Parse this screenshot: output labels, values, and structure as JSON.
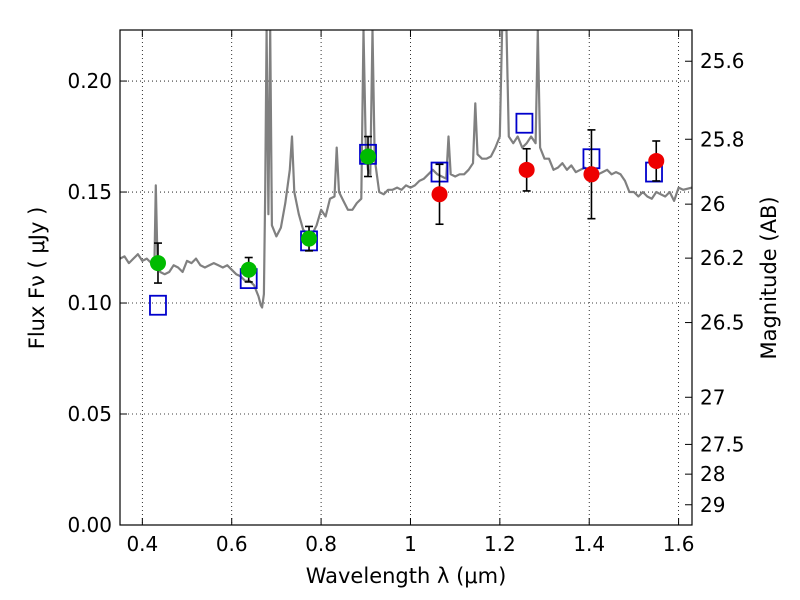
{
  "chart_data": {
    "type": "scatter",
    "xlabel": "Wavelength  λ (μm)",
    "ylabel": "Flux  Fν  ( μJy )",
    "y2label": "Magnitude (AB)",
    "xlim": [
      0.35,
      1.63
    ],
    "ylim": [
      0.0,
      0.223
    ],
    "grid": true,
    "x_ticks": [
      {
        "value": 0.4,
        "label": "0.4"
      },
      {
        "value": 0.6,
        "label": "0.6"
      },
      {
        "value": 0.8,
        "label": "0.8"
      },
      {
        "value": 1.0,
        "label": "1"
      },
      {
        "value": 1.2,
        "label": "1.2"
      },
      {
        "value": 1.4,
        "label": "1.4"
      },
      {
        "value": 1.6,
        "label": "1.6"
      }
    ],
    "y_ticks": [
      {
        "value": 0.0,
        "label": "0.00"
      },
      {
        "value": 0.05,
        "label": "0.05"
      },
      {
        "value": 0.1,
        "label": "0.10"
      },
      {
        "value": 0.15,
        "label": "0.15"
      },
      {
        "value": 0.2,
        "label": "0.20"
      }
    ],
    "magnitude_ticks": [
      {
        "value": 25.6,
        "label": "25.6"
      },
      {
        "value": 25.8,
        "label": "25.8"
      },
      {
        "value": 26.0,
        "label": "26"
      },
      {
        "value": 26.2,
        "label": "26.2"
      },
      {
        "value": 26.5,
        "label": "26.5"
      },
      {
        "value": 27.0,
        "label": "27"
      },
      {
        "value": 27.5,
        "label": "27.5"
      },
      {
        "value": 28.0,
        "label": "28"
      },
      {
        "value": 29.0,
        "label": "29"
      }
    ],
    "series": [
      {
        "kind": "spectrum",
        "color": "#808080",
        "points": [
          [
            0.35,
            0.12
          ],
          [
            0.36,
            0.121
          ],
          [
            0.37,
            0.118
          ],
          [
            0.38,
            0.12
          ],
          [
            0.39,
            0.122
          ],
          [
            0.4,
            0.119
          ],
          [
            0.41,
            0.12
          ],
          [
            0.42,
            0.118
          ],
          [
            0.427,
            0.117
          ],
          [
            0.43,
            0.153
          ],
          [
            0.434,
            0.119
          ],
          [
            0.44,
            0.114
          ],
          [
            0.45,
            0.113
          ],
          [
            0.46,
            0.114
          ],
          [
            0.47,
            0.117
          ],
          [
            0.48,
            0.116
          ],
          [
            0.49,
            0.114
          ],
          [
            0.5,
            0.119
          ],
          [
            0.51,
            0.118
          ],
          [
            0.52,
            0.12
          ],
          [
            0.53,
            0.117
          ],
          [
            0.54,
            0.116
          ],
          [
            0.55,
            0.117
          ],
          [
            0.56,
            0.118
          ],
          [
            0.57,
            0.117
          ],
          [
            0.58,
            0.116
          ],
          [
            0.59,
            0.117
          ],
          [
            0.6,
            0.115
          ],
          [
            0.61,
            0.113
          ],
          [
            0.62,
            0.112
          ],
          [
            0.63,
            0.11
          ],
          [
            0.64,
            0.11
          ],
          [
            0.65,
            0.108
          ],
          [
            0.66,
            0.103
          ],
          [
            0.665,
            0.099
          ],
          [
            0.668,
            0.098
          ],
          [
            0.672,
            0.104
          ],
          [
            0.675,
            0.15
          ],
          [
            0.678,
            0.223
          ],
          [
            0.682,
            0.14
          ],
          [
            0.686,
            0.223
          ],
          [
            0.69,
            0.135
          ],
          [
            0.7,
            0.13
          ],
          [
            0.71,
            0.134
          ],
          [
            0.72,
            0.145
          ],
          [
            0.73,
            0.16
          ],
          [
            0.735,
            0.175
          ],
          [
            0.74,
            0.15
          ],
          [
            0.75,
            0.14
          ],
          [
            0.76,
            0.133
          ],
          [
            0.77,
            0.131
          ],
          [
            0.78,
            0.131
          ],
          [
            0.79,
            0.135
          ],
          [
            0.8,
            0.142
          ],
          [
            0.81,
            0.139
          ],
          [
            0.82,
            0.147
          ],
          [
            0.83,
            0.148
          ],
          [
            0.835,
            0.17
          ],
          [
            0.84,
            0.15
          ],
          [
            0.85,
            0.146
          ],
          [
            0.86,
            0.142
          ],
          [
            0.87,
            0.142
          ],
          [
            0.88,
            0.145
          ],
          [
            0.89,
            0.147
          ],
          [
            0.895,
            0.223
          ],
          [
            0.9,
            0.17
          ],
          [
            0.905,
            0.16
          ],
          [
            0.91,
            0.158
          ],
          [
            0.915,
            0.223
          ],
          [
            0.92,
            0.165
          ],
          [
            0.93,
            0.15
          ],
          [
            0.94,
            0.149
          ],
          [
            0.95,
            0.151
          ],
          [
            0.96,
            0.151
          ],
          [
            0.97,
            0.152
          ],
          [
            0.98,
            0.151
          ],
          [
            0.99,
            0.153
          ],
          [
            1.0,
            0.152
          ],
          [
            1.01,
            0.153
          ],
          [
            1.02,
            0.155
          ],
          [
            1.03,
            0.156
          ],
          [
            1.04,
            0.158
          ],
          [
            1.05,
            0.16
          ],
          [
            1.06,
            0.158
          ],
          [
            1.07,
            0.157
          ],
          [
            1.08,
            0.156
          ],
          [
            1.085,
            0.175
          ],
          [
            1.09,
            0.158
          ],
          [
            1.1,
            0.157
          ],
          [
            1.11,
            0.158
          ],
          [
            1.12,
            0.158
          ],
          [
            1.13,
            0.16
          ],
          [
            1.14,
            0.163
          ],
          [
            1.145,
            0.19
          ],
          [
            1.15,
            0.167
          ],
          [
            1.16,
            0.165
          ],
          [
            1.17,
            0.165
          ],
          [
            1.18,
            0.166
          ],
          [
            1.19,
            0.17
          ],
          [
            1.2,
            0.175
          ],
          [
            1.205,
            0.223
          ],
          [
            1.215,
            0.223
          ],
          [
            1.22,
            0.175
          ],
          [
            1.23,
            0.172
          ],
          [
            1.24,
            0.175
          ],
          [
            1.25,
            0.17
          ],
          [
            1.26,
            0.172
          ],
          [
            1.27,
            0.175
          ],
          [
            1.28,
            0.172
          ],
          [
            1.285,
            0.223
          ],
          [
            1.29,
            0.17
          ],
          [
            1.3,
            0.165
          ],
          [
            1.31,
            0.165
          ],
          [
            1.32,
            0.16
          ],
          [
            1.33,
            0.161
          ],
          [
            1.34,
            0.163
          ],
          [
            1.35,
            0.16
          ],
          [
            1.36,
            0.162
          ],
          [
            1.37,
            0.159
          ],
          [
            1.38,
            0.16
          ],
          [
            1.39,
            0.161
          ],
          [
            1.4,
            0.159
          ],
          [
            1.41,
            0.16
          ],
          [
            1.42,
            0.158
          ],
          [
            1.43,
            0.159
          ],
          [
            1.44,
            0.16
          ],
          [
            1.45,
            0.158
          ],
          [
            1.46,
            0.159
          ],
          [
            1.47,
            0.158
          ],
          [
            1.48,
            0.155
          ],
          [
            1.49,
            0.15
          ],
          [
            1.5,
            0.15
          ],
          [
            1.51,
            0.148
          ],
          [
            1.52,
            0.15
          ],
          [
            1.53,
            0.148
          ],
          [
            1.54,
            0.147
          ],
          [
            1.55,
            0.15
          ],
          [
            1.56,
            0.149
          ],
          [
            1.57,
            0.148
          ],
          [
            1.58,
            0.15
          ],
          [
            1.59,
            0.146
          ],
          [
            1.6,
            0.152
          ],
          [
            1.61,
            0.151
          ],
          [
            1.63,
            0.152
          ]
        ]
      },
      {
        "kind": "model",
        "marker": "open-square",
        "color": "#0000cc",
        "points": [
          [
            0.435,
            0.099
          ],
          [
            0.638,
            0.111
          ],
          [
            0.773,
            0.128
          ],
          [
            0.905,
            0.167
          ],
          [
            1.065,
            0.159
          ],
          [
            1.255,
            0.181
          ],
          [
            1.405,
            0.165
          ],
          [
            1.545,
            0.159
          ]
        ]
      },
      {
        "kind": "observed",
        "marker": "circle",
        "color": "#00bb00",
        "points": [
          {
            "x": 0.435,
            "y": 0.118,
            "err": 0.009
          },
          {
            "x": 0.638,
            "y": 0.115,
            "err": 0.0055
          },
          {
            "x": 0.773,
            "y": 0.129,
            "err": 0.0055
          },
          {
            "x": 0.905,
            "y": 0.166,
            "err": 0.009
          }
        ]
      },
      {
        "kind": "observed",
        "marker": "circle",
        "color": "#ee0000",
        "points": [
          {
            "x": 1.065,
            "y": 0.149,
            "err": 0.0135
          },
          {
            "x": 1.26,
            "y": 0.16,
            "err": 0.0095
          },
          {
            "x": 1.405,
            "y": 0.158,
            "err": 0.02
          },
          {
            "x": 1.55,
            "y": 0.164,
            "err": 0.009
          }
        ]
      }
    ]
  }
}
